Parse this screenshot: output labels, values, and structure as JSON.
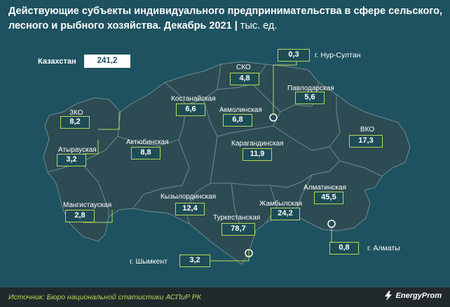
{
  "header": {
    "title": "Действующие субъекты индивидуального предпринимательства в сфере сельского, лесного и рыбного хозяйства. Декабрь 2021",
    "separator": "|",
    "unit": "тыс. ед."
  },
  "total": {
    "label": "Казахстан",
    "value": "241,2"
  },
  "regions": {
    "sko": {
      "name": "СКО",
      "value": "4,8"
    },
    "nur_sultan": {
      "name": "г. Нур-Султан",
      "value": "0,3"
    },
    "pavlodar": {
      "name": "Павлодарская",
      "value": "5,6"
    },
    "kostanay": {
      "name": "Костанайская",
      "value": "6,6"
    },
    "akmola": {
      "name": "Акмолинская",
      "value": "6,8"
    },
    "zko": {
      "name": "ЗКО",
      "value": "8,2"
    },
    "atyrau": {
      "name": "Атырауская",
      "value": "3,2"
    },
    "aktobe": {
      "name": "Актюбинская",
      "value": "8,8"
    },
    "karaganda": {
      "name": "Карагандинская",
      "value": "11,9"
    },
    "vko": {
      "name": "ВКО",
      "value": "17,3"
    },
    "almaty_reg": {
      "name": "Алматинская",
      "value": "45,5"
    },
    "kyzylorda": {
      "name": "Кызылординская",
      "value": "12,4"
    },
    "mangistau": {
      "name": "Мангистауская",
      "value": "2,8"
    },
    "zhambyl": {
      "name": "Жамбылская",
      "value": "24,2"
    },
    "turkestan": {
      "name": "Туркестанская",
      "value": "78,7"
    },
    "almaty_city": {
      "name": "г. Алматы",
      "value": "0,8"
    },
    "shymkent": {
      "name": "г. Шымкент",
      "value": "3,2"
    }
  },
  "colors": {
    "background": "#1f5260",
    "territory": "#2c4b52",
    "border": "#6c8c92",
    "accent": "#b9d75b",
    "footer": "#22292d"
  },
  "footer": {
    "source": "Источник: Бюро национальной статистики АСПиР РК",
    "logo_text": "EnergyProm",
    "logo_icon": "lightning-logo-icon"
  }
}
